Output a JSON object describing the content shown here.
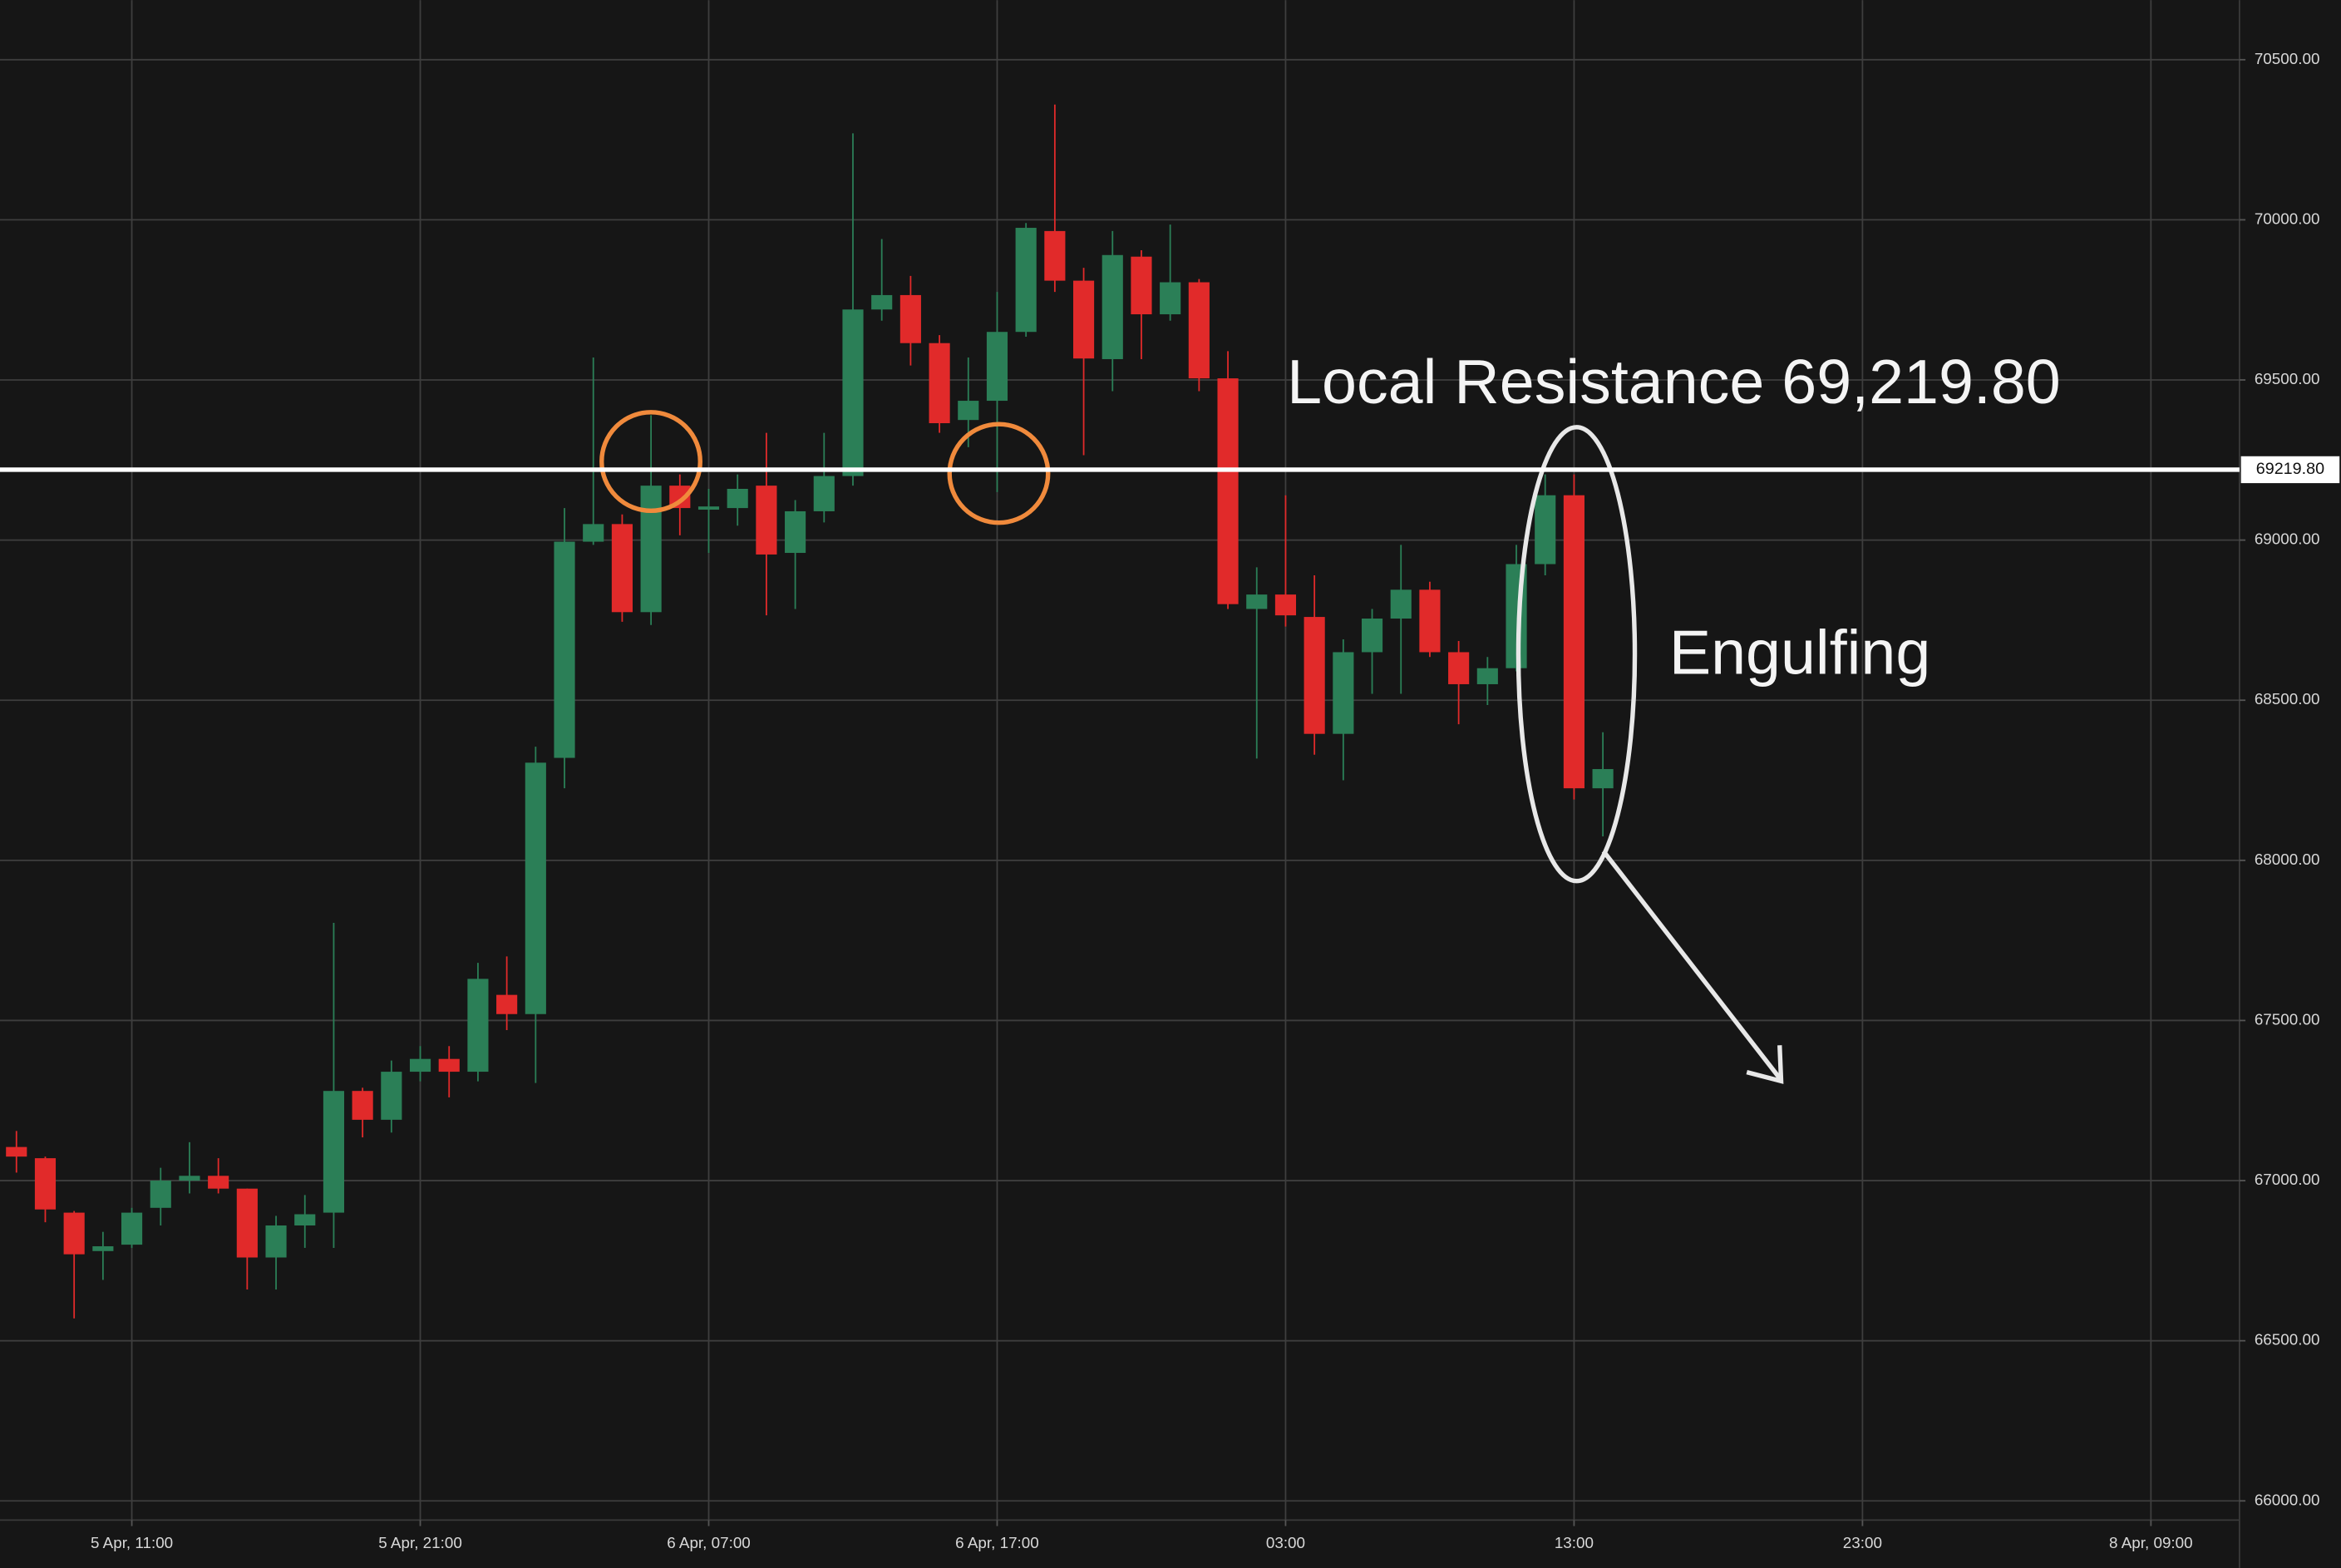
{
  "chart_data": {
    "type": "candlestick",
    "x": [
      0,
      1,
      2,
      3,
      4,
      5,
      6,
      7,
      8,
      9,
      10,
      11,
      12,
      13,
      14,
      15,
      16,
      17,
      18,
      19,
      20,
      21,
      22,
      23,
      24,
      25,
      26,
      27,
      28,
      29,
      30,
      31,
      32,
      33,
      34,
      35,
      36,
      37,
      38,
      39,
      40,
      41,
      42,
      43,
      44,
      45,
      46,
      47,
      48,
      49,
      50,
      51,
      52,
      53,
      54,
      55
    ],
    "open": [
      67105,
      67070,
      66900,
      66780,
      66800,
      66915,
      67000,
      67015,
      66975,
      66760,
      66860,
      66900,
      67280,
      67190,
      67340,
      67380,
      67340,
      67580,
      67520,
      68320,
      68995,
      69050,
      68775,
      69170,
      69095,
      69100,
      69170,
      68960,
      69090,
      69200,
      69720,
      69765,
      69615,
      69375,
      69435,
      69650,
      69965,
      69810,
      69565,
      69885,
      69705,
      69805,
      69505,
      68785,
      68830,
      68760,
      68395,
      68650,
      68755,
      68845,
      68650,
      68550,
      68600,
      68925,
      69140,
      68225
    ],
    "high": [
      67155,
      67075,
      66905,
      66840,
      66915,
      67040,
      67120,
      67070,
      66975,
      66890,
      66955,
      67805,
      67290,
      67375,
      67420,
      67420,
      67680,
      67700,
      68355,
      69100,
      69570,
      69080,
      69390,
      69205,
      69160,
      69205,
      69335,
      69125,
      69335,
      70270,
      69940,
      69825,
      69640,
      69570,
      69775,
      69990,
      70360,
      69850,
      69965,
      69905,
      69985,
      69815,
      69590,
      68915,
      69140,
      68890,
      68690,
      68785,
      68985,
      68870,
      68685,
      68635,
      68985,
      69205,
      69205,
      68400
    ],
    "low": [
      67025,
      66870,
      66570,
      66690,
      66790,
      66860,
      66960,
      66960,
      66660,
      66660,
      66790,
      66790,
      67135,
      67150,
      67310,
      67260,
      67310,
      67470,
      67305,
      68225,
      68985,
      68745,
      68735,
      69015,
      68960,
      69045,
      68765,
      68785,
      69055,
      69170,
      69685,
      69545,
      69335,
      69290,
      69150,
      69635,
      69775,
      69265,
      69465,
      69565,
      69685,
      69465,
      68785,
      68318,
      68730,
      68330,
      68250,
      68520,
      68520,
      68635,
      68425,
      68485,
      68590,
      68890,
      68190,
      68075
    ],
    "close": [
      67075,
      66910,
      66770,
      66795,
      66900,
      67000,
      67015,
      66975,
      66760,
      66860,
      66895,
      67280,
      67190,
      67340,
      67380,
      67340,
      67630,
      67520,
      68305,
      68995,
      69050,
      68775,
      69170,
      69100,
      69105,
      69160,
      68955,
      69090,
      69200,
      69720,
      69765,
      69615,
      69365,
      69435,
      69650,
      69975,
      69810,
      69567,
      69890,
      69705,
      69805,
      69505,
      68800,
      68830,
      68765,
      68395,
      68650,
      68755,
      68845,
      68650,
      68550,
      68600,
      68925,
      69140,
      68225,
      68285
    ],
    "up_color": "#2b7f57",
    "down_color": "#e12a2a",
    "xlim": [
      -0.57,
      77.07
    ],
    "xticks": [
      {
        "value": 4,
        "label": "5 Apr, 11:00"
      },
      {
        "value": 14,
        "label": "5 Apr, 21:00"
      },
      {
        "value": 24,
        "label": "6 Apr, 07:00"
      },
      {
        "value": 34,
        "label": "6 Apr, 17:00"
      },
      {
        "value": 44,
        "label": "03:00"
      },
      {
        "value": 54,
        "label": "13:00"
      },
      {
        "value": 64,
        "label": "23:00"
      },
      {
        "value": 74,
        "label": "8 Apr, 09:00"
      }
    ],
    "ylim": [
      65940,
      70686
    ],
    "yticks": [
      {
        "value": 66000,
        "label": "66000.00"
      },
      {
        "value": 66500,
        "label": "66500.00"
      },
      {
        "value": 67000,
        "label": "67000.00"
      },
      {
        "value": 67500,
        "label": "67500.00"
      },
      {
        "value": 68000,
        "label": "68000.00"
      },
      {
        "value": 68500,
        "label": "68500.00"
      },
      {
        "value": 69000,
        "label": "69000.00"
      },
      {
        "value": 69500,
        "label": "69500.00"
      },
      {
        "value": 70000,
        "label": "70000.00"
      },
      {
        "value": 70500,
        "label": "70500.00"
      }
    ],
    "grid": true,
    "resistance": {
      "value": 69219.8,
      "label": "69219.80",
      "annotation": "Local Resistance 69,219.80"
    },
    "pattern_annotation": "Engulfing"
  }
}
